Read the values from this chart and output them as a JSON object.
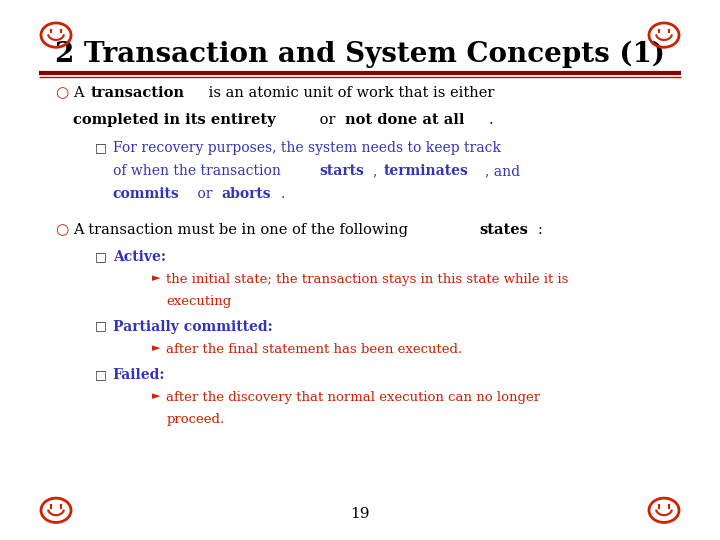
{
  "bg_color": "#ffffff",
  "title": "2 Transaction and System Concepts (1)",
  "title_color": "#000000",
  "title_fontsize": 20,
  "separator_color1": "#8B0000",
  "separator_color2": "#cc0000",
  "page_number": "19",
  "icon_color": "#cc2200",
  "content": [
    {
      "level": 1,
      "parts": [
        {
          "text": "A ",
          "bold": false,
          "color": "#000000"
        },
        {
          "text": "transaction",
          "bold": true,
          "color": "#000000"
        },
        {
          "text": " is an atomic unit of work that is either",
          "bold": false,
          "color": "#000000"
        }
      ],
      "line2_parts": [
        {
          "text": "completed in its entirety",
          "bold": true,
          "color": "#000000"
        },
        {
          "text": " or ",
          "bold": false,
          "color": "#000000"
        },
        {
          "text": "not done at all",
          "bold": true,
          "color": "#000000"
        },
        {
          "text": ".",
          "bold": false,
          "color": "#000000"
        }
      ]
    },
    {
      "level": 2,
      "parts": [
        {
          "text": "For recovery purposes, the system needs to keep track",
          "bold": false,
          "color": "#3333bb"
        }
      ],
      "line2_parts": [
        {
          "text": "of when the transaction ",
          "bold": false,
          "color": "#3333bb"
        },
        {
          "text": "starts",
          "bold": true,
          "color": "#3333bb"
        },
        {
          "text": ", ",
          "bold": false,
          "color": "#3333bb"
        },
        {
          "text": "terminates",
          "bold": true,
          "color": "#3333bb"
        },
        {
          "text": ", and",
          "bold": false,
          "color": "#3333bb"
        }
      ],
      "line3_parts": [
        {
          "text": "commits",
          "bold": true,
          "color": "#3333bb"
        },
        {
          "text": " or ",
          "bold": false,
          "color": "#3333bb"
        },
        {
          "text": "aborts",
          "bold": true,
          "color": "#3333bb"
        },
        {
          "text": ".",
          "bold": false,
          "color": "#3333bb"
        }
      ]
    },
    {
      "level": 1,
      "parts": [
        {
          "text": "A transaction must be in one of the following ",
          "bold": false,
          "color": "#000000"
        },
        {
          "text": "states",
          "bold": true,
          "color": "#000000"
        },
        {
          "text": ":",
          "bold": false,
          "color": "#000000"
        }
      ]
    },
    {
      "level": 2,
      "parts": [
        {
          "text": "Active:",
          "bold": true,
          "color": "#3333bb"
        }
      ]
    },
    {
      "level": 3,
      "parts": [
        {
          "text": "the initial state; the transaction stays in this state while it is",
          "bold": false,
          "color": "#cc2200"
        }
      ],
      "line2_parts": [
        {
          "text": "executing",
          "bold": false,
          "color": "#cc2200"
        }
      ]
    },
    {
      "level": 2,
      "parts": [
        {
          "text": "Partially committed:",
          "bold": true,
          "color": "#3333bb"
        }
      ]
    },
    {
      "level": 3,
      "parts": [
        {
          "text": "after the final statement has been executed.",
          "bold": false,
          "color": "#cc2200"
        }
      ]
    },
    {
      "level": 2,
      "parts": [
        {
          "text": "Failed:",
          "bold": true,
          "color": "#3333bb"
        }
      ]
    },
    {
      "level": 3,
      "parts": [
        {
          "text": "after the discovery that normal execution can no longer",
          "bold": false,
          "color": "#cc2200"
        }
      ],
      "line2_parts": [
        {
          "text": "proceed.",
          "bold": false,
          "color": "#cc2200"
        }
      ]
    }
  ]
}
